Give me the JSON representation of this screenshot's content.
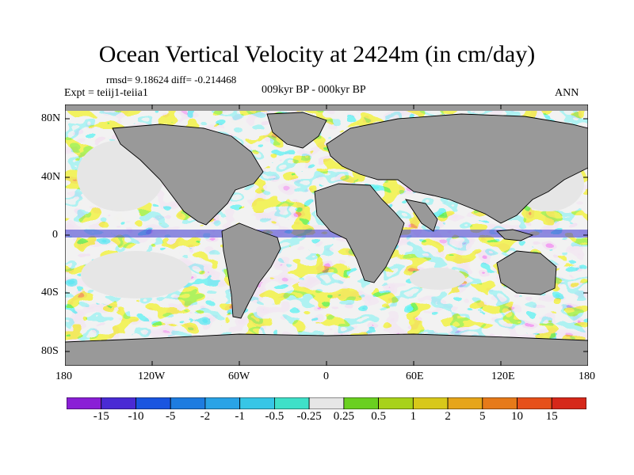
{
  "title": "Ocean Vertical Velocity at 2424m (in cm/day)",
  "stats": "rmsd= 9.18624 diff= -0.214468",
  "expt": "Expt = teiij1-teiia1",
  "period": "009kyr BP - 000kyr BP",
  "season": "ANN",
  "axes": {
    "y_ticks": [
      "80N",
      "40N",
      "0",
      "40S",
      "80S"
    ],
    "x_ticks": [
      "180",
      "120W",
      "60W",
      "0",
      "60E",
      "120E",
      "180"
    ]
  },
  "colorbar": {
    "labels": [
      "-15",
      "-10",
      "-5",
      "-2",
      "-1",
      "-0.5",
      "-0.25",
      "0.25",
      "0.5",
      "1",
      "2",
      "5",
      "10",
      "15"
    ],
    "colors": [
      "#8a1fd6",
      "#4a2bd4",
      "#1a55e0",
      "#1e7ce0",
      "#2aa3e6",
      "#37c6e6",
      "#3fe0c8",
      "#e6e6e6",
      "#6ad020",
      "#a8d21a",
      "#d8c81a",
      "#e6a51a",
      "#e67a1a",
      "#e6501a",
      "#d6281a"
    ]
  },
  "colors": {
    "land": "#999999",
    "coast": "#000000",
    "background": "#ffffff"
  }
}
